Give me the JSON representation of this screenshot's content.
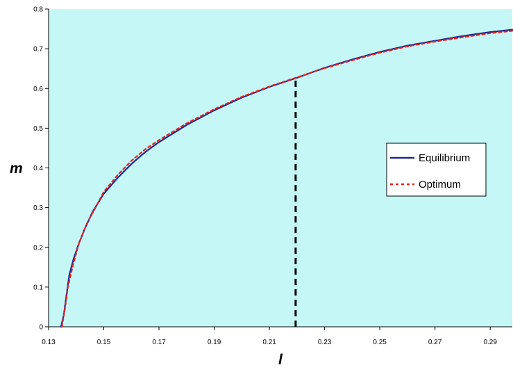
{
  "chart_data": {
    "type": "line",
    "xlabel": "l",
    "ylabel": "m",
    "xlim": [
      0.13,
      0.298
    ],
    "ylim": [
      0,
      0.8
    ],
    "x_ticks": [
      "0.13",
      "0.15",
      "0.17",
      "0.19",
      "0.21",
      "0.23",
      "0.25",
      "0.27",
      "0.29"
    ],
    "y_ticks": [
      "0",
      "0.1",
      "0.2",
      "0.3",
      "0.4",
      "0.5",
      "0.6",
      "0.7",
      "0.8"
    ],
    "grid": false,
    "legend_position": "right",
    "background": "#c5f7f7",
    "series": [
      {
        "name": "Equilibrium",
        "color": "#1f2a8c",
        "style": "solid",
        "points": [
          [
            0.1345,
            0.0
          ],
          [
            0.1355,
            0.03
          ],
          [
            0.1365,
            0.08
          ],
          [
            0.1375,
            0.13
          ],
          [
            0.139,
            0.17
          ],
          [
            0.141,
            0.21
          ],
          [
            0.143,
            0.245
          ],
          [
            0.146,
            0.29
          ],
          [
            0.15,
            0.335
          ],
          [
            0.155,
            0.375
          ],
          [
            0.16,
            0.41
          ],
          [
            0.165,
            0.44
          ],
          [
            0.17,
            0.465
          ],
          [
            0.18,
            0.508
          ],
          [
            0.19,
            0.545
          ],
          [
            0.2,
            0.577
          ],
          [
            0.21,
            0.604
          ],
          [
            0.22,
            0.627
          ],
          [
            0.23,
            0.652
          ],
          [
            0.24,
            0.673
          ],
          [
            0.25,
            0.692
          ],
          [
            0.26,
            0.708
          ],
          [
            0.27,
            0.72
          ],
          [
            0.28,
            0.732
          ],
          [
            0.29,
            0.742
          ],
          [
            0.298,
            0.748
          ]
        ]
      },
      {
        "name": "Optimum",
        "color": "#e8221f",
        "style": "dotted",
        "points": [
          [
            0.1348,
            0.0
          ],
          [
            0.1358,
            0.04
          ],
          [
            0.137,
            0.1
          ],
          [
            0.139,
            0.16
          ],
          [
            0.141,
            0.21
          ],
          [
            0.144,
            0.262
          ],
          [
            0.147,
            0.3
          ],
          [
            0.15,
            0.34
          ],
          [
            0.155,
            0.382
          ],
          [
            0.16,
            0.418
          ],
          [
            0.165,
            0.447
          ],
          [
            0.17,
            0.47
          ],
          [
            0.18,
            0.512
          ],
          [
            0.19,
            0.548
          ],
          [
            0.2,
            0.579
          ],
          [
            0.21,
            0.605
          ],
          [
            0.22,
            0.628
          ],
          [
            0.23,
            0.651
          ],
          [
            0.24,
            0.671
          ],
          [
            0.25,
            0.69
          ],
          [
            0.26,
            0.706
          ],
          [
            0.27,
            0.718
          ],
          [
            0.28,
            0.729
          ],
          [
            0.29,
            0.739
          ],
          [
            0.298,
            0.745
          ]
        ]
      }
    ],
    "annotations": [
      {
        "type": "vertical-dashed-line",
        "x": 0.2195,
        "y_from": 0,
        "y_to": 0.627,
        "color": "#000000"
      }
    ]
  }
}
